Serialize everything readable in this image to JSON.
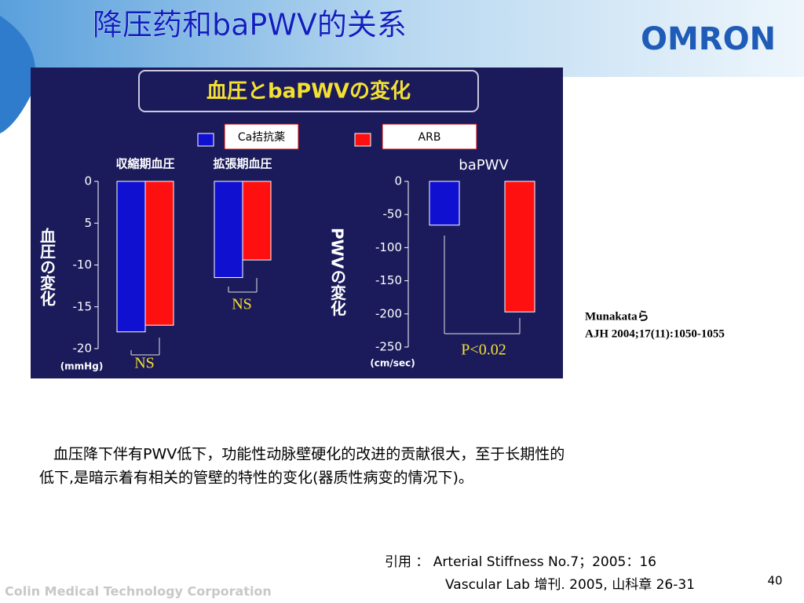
{
  "title": "降压药和baPWV的关系",
  "brand": "OMRON",
  "figure_title": "血圧とbaPWVの変化",
  "citation": [
    "Munakataら",
    "AJH 2004;17(11):1050-1055"
  ],
  "body": [
    "血压降下伴有PWV低下，功能性动脉壁硬化的改进的贡献很大，至于长期性的",
    "低下,是暗示着有相关的管壁的特性的变化(器质性病变的情况下)。"
  ],
  "reference": [
    "引用 ： Arterial Stiffness No.7；2005：16",
    "Vascular Lab 增刊. 2005, 山科章 26-31"
  ],
  "footer": "Colin Medical Technology Corporation",
  "page_number": "40",
  "chart_data": [
    {
      "type": "bar",
      "categories": [
        "収縮期血圧",
        "拡張期血圧"
      ],
      "series": [
        {
          "name": "Ca拮抗薬",
          "color": "#1010d0",
          "values": [
            -18,
            -11.5
          ]
        },
        {
          "name": "ARB",
          "color": "#ff1010",
          "values": [
            -17.2,
            -9.4
          ]
        }
      ],
      "ylim": [
        -20,
        0
      ],
      "yticks": [
        0,
        {
          "value": -5,
          "label": "5"
        },
        -10,
        -15,
        -20
      ],
      "ylabel": "血圧の変化",
      "unit": "(mmHg)",
      "annotations": [
        "NS",
        "NS"
      ]
    },
    {
      "type": "bar",
      "title": "baPWV",
      "series": [
        {
          "color": "#1010d0",
          "values": [
            -66
          ]
        },
        {
          "color": "#ff1010",
          "values": [
            -197
          ]
        }
      ],
      "ylim": [
        -250,
        0
      ],
      "yticks": [
        0,
        -50,
        -100,
        -150,
        -200,
        -250
      ],
      "ylabel": "PWVの変化",
      "unit": "(cm/sec)",
      "annotations": [
        "P<0.02"
      ]
    }
  ]
}
